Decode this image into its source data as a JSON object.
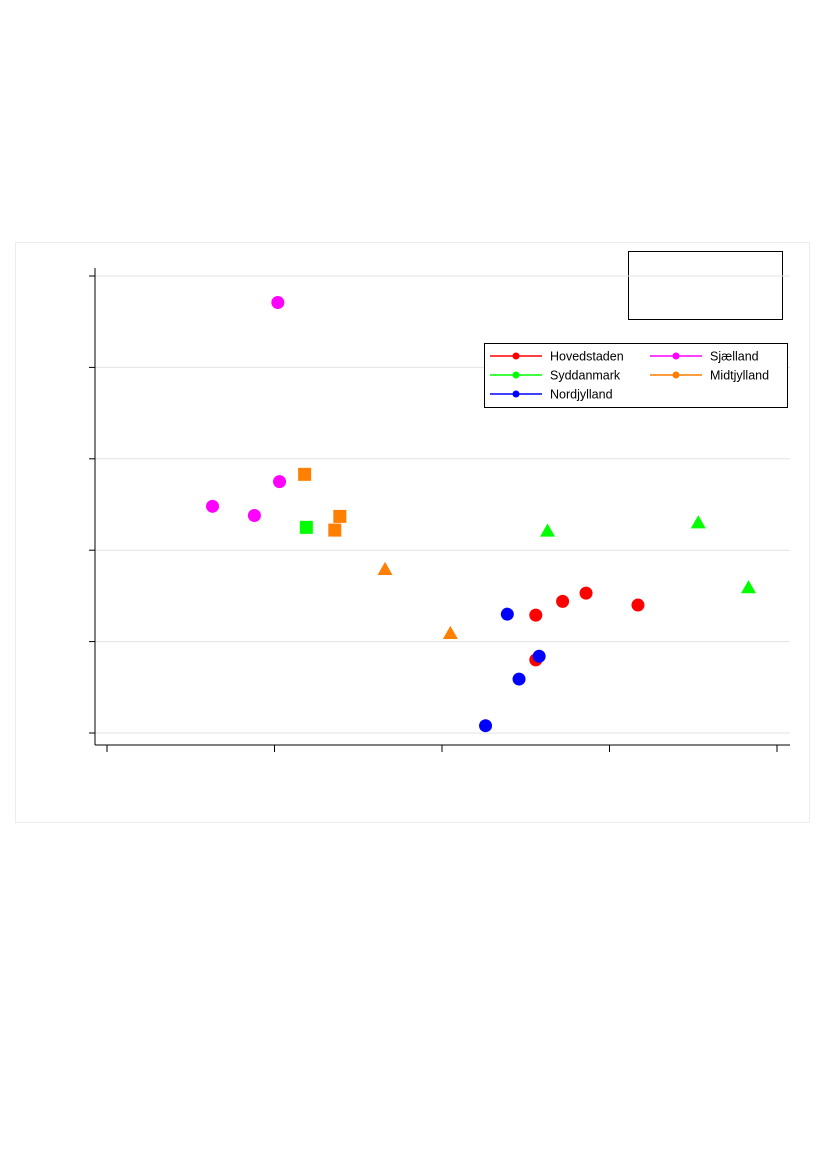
{
  "chart_data": {
    "type": "scatter",
    "title": "",
    "xlabel": "",
    "ylabel": "",
    "xlim": [
      0,
      4
    ],
    "ylim": [
      0,
      5
    ],
    "grid": true,
    "legend_position": "top-right",
    "series": [
      {
        "name": "Hovedstaden",
        "color": "#ff0000",
        "marker": "circle",
        "points": [
          {
            "x": 2.56,
            "y": 1.29
          },
          {
            "x": 2.72,
            "y": 1.44
          },
          {
            "x": 2.86,
            "y": 1.53
          },
          {
            "x": 3.17,
            "y": 1.4
          },
          {
            "x": 2.56,
            "y": 0.8
          }
        ]
      },
      {
        "name": "Sjælland",
        "color": "#ff00ff",
        "marker": "circle",
        "points": [
          {
            "x": 1.02,
            "y": 4.71
          },
          {
            "x": 1.03,
            "y": 2.75
          },
          {
            "x": 0.63,
            "y": 2.48
          },
          {
            "x": 0.88,
            "y": 2.38
          }
        ]
      },
      {
        "name": "Syddanmark",
        "color": "#00ff00",
        "marker": "triangle",
        "points": [
          {
            "x": 2.63,
            "y": 2.21
          },
          {
            "x": 3.53,
            "y": 2.3
          },
          {
            "x": 3.83,
            "y": 1.59
          }
        ]
      },
      {
        "name": "Syddanmark",
        "color": "#00ff00",
        "marker": "square",
        "points": [
          {
            "x": 1.19,
            "y": 2.25
          }
        ]
      },
      {
        "name": "Midtjylland",
        "color": "#ff7f00",
        "marker": "square",
        "points": [
          {
            "x": 1.18,
            "y": 2.83
          },
          {
            "x": 1.39,
            "y": 2.37
          },
          {
            "x": 1.36,
            "y": 2.22
          }
        ]
      },
      {
        "name": "Midtjylland",
        "color": "#ff7f00",
        "marker": "triangle",
        "points": [
          {
            "x": 1.66,
            "y": 1.79
          },
          {
            "x": 2.05,
            "y": 1.09
          }
        ]
      },
      {
        "name": "Nordjylland",
        "color": "#0000ff",
        "marker": "circle",
        "points": [
          {
            "x": 2.39,
            "y": 1.3
          },
          {
            "x": 2.46,
            "y": 0.59
          },
          {
            "x": 2.58,
            "y": 0.84
          },
          {
            "x": 2.26,
            "y": 0.08
          }
        ]
      }
    ],
    "legend": [
      {
        "label": "Hovedstaden",
        "color": "#ff0000"
      },
      {
        "label": "Sjælland",
        "color": "#ff00ff"
      },
      {
        "label": "Syddanmark",
        "color": "#00ff00"
      },
      {
        "label": "Midtjylland",
        "color": "#ff7f00"
      },
      {
        "label": "Nordjylland",
        "color": "#0000ff"
      }
    ],
    "x_tick_count": 5,
    "y_tick_count": 6
  }
}
